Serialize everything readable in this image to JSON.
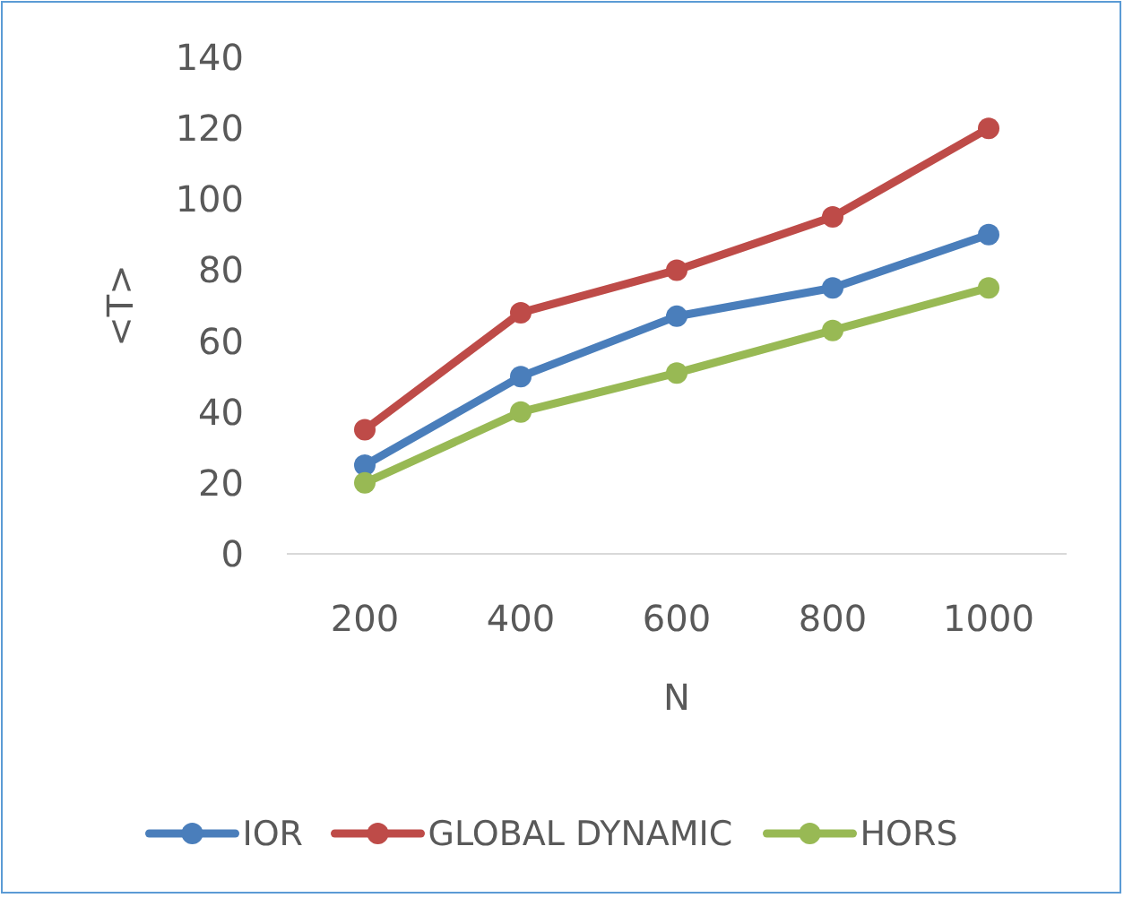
{
  "chart_data": {
    "type": "line",
    "xlabel": "N",
    "ylabel": "<T>",
    "categories": [
      "200",
      "400",
      "600",
      "800",
      "1000"
    ],
    "series": [
      {
        "name": "IOR",
        "color": "#4a7ebb",
        "values": [
          25,
          50,
          67,
          75,
          90
        ]
      },
      {
        "name": "GLOBAL DYNAMIC",
        "color": "#be4b48",
        "values": [
          35,
          68,
          80,
          95,
          120
        ]
      },
      {
        "name": "HORS",
        "color": "#98b954",
        "values": [
          20,
          40,
          51,
          63,
          75
        ]
      }
    ],
    "ylim": [
      0,
      140
    ],
    "yticks": [
      0,
      20,
      40,
      60,
      80,
      100,
      120,
      140
    ],
    "grid": false,
    "legend": "bottom",
    "marker": "circle",
    "line_style": "solid"
  }
}
